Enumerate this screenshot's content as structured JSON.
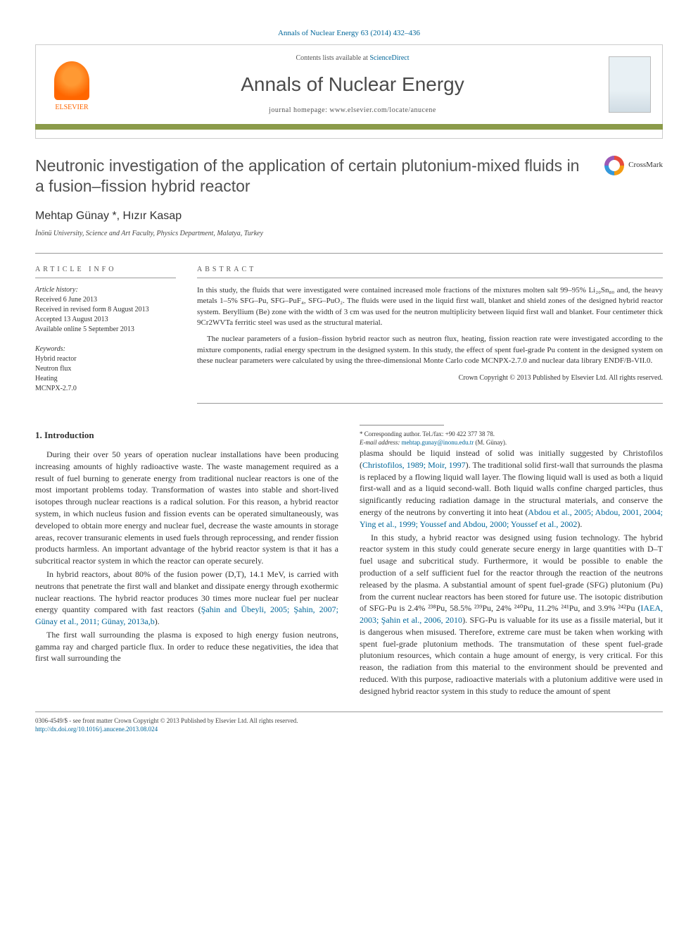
{
  "header": {
    "citation": "Annals of Nuclear Energy 63 (2014) 432–436",
    "contents_prefix": "Contents lists available at ",
    "contents_link": "ScienceDirect",
    "journal_name": "Annals of Nuclear Energy",
    "homepage_prefix": "journal homepage: ",
    "homepage_url": "www.elsevier.com/locate/anucene",
    "publisher_label": "ELSEVIER"
  },
  "colors": {
    "link": "#006699",
    "accent": "#8b9b4a",
    "elsevier_orange": "#ff6600",
    "text_gray": "#505050"
  },
  "crossmark_label": "CrossMark",
  "title": "Neutronic investigation of the application of certain plutonium-mixed fluids in a fusion–fission hybrid reactor",
  "authors": "Mehtap Günay *, Hızır Kasap",
  "affiliation": "İnönü University, Science and Art Faculty, Physics Department, Malatya, Turkey",
  "article_info": {
    "heading": "ARTICLE INFO",
    "history_label": "Article history:",
    "received": "Received 6 June 2013",
    "revised": "Received in revised form 8 August 2013",
    "accepted": "Accepted 13 August 2013",
    "online": "Available online 5 September 2013",
    "keywords_label": "Keywords:",
    "keywords": [
      "Hybrid reactor",
      "Neutron flux",
      "Heating",
      "MCNPX-2.7.0"
    ]
  },
  "abstract": {
    "heading": "ABSTRACT",
    "p1": "In this study, the fluids that were investigated were contained increased mole fractions of the mixtures molten salt 99–95% Li₂₀Sn₈₀ and, the heavy metals 1–5% SFG–Pu, SFG–PuF₄, SFG–PuO₂. The fluids were used in the liquid first wall, blanket and shield zones of the designed hybrid reactor system. Beryllium (Be) zone with the width of 3 cm was used for the neutron multiplicity between liquid first wall and blanket. Four centimeter thick 9Cr2WVTa ferritic steel was used as the structural material.",
    "p2": "The nuclear parameters of a fusion–fission hybrid reactor such as neutron flux, heating, fission reaction rate were investigated according to the mixture components, radial energy spectrum in the designed system. In this study, the effect of spent fuel-grade Pu content in the designed system on these nuclear parameters were calculated by using the three-dimensional Monte Carlo code MCNPX-2.7.0 and nuclear data library ENDF/B-VII.0.",
    "copyright": "Crown Copyright © 2013 Published by Elsevier Ltd. All rights reserved."
  },
  "body": {
    "section_heading": "1. Introduction",
    "p1": "During their over 50 years of operation nuclear installations have been producing increasing amounts of highly radioactive waste. The waste management required as a result of fuel burning to generate energy from traditional nuclear reactors is one of the most important problems today. Transformation of wastes into stable and short-lived isotopes through nuclear reactions is a radical solution. For this reason, a hybrid reactor system, in which nucleus fusion and fission events can be operated simultaneously, was developed to obtain more energy and nuclear fuel, decrease the waste amounts in storage areas, recover transuranic elements in used fuels through reprocessing, and render fission products harmless. An important advantage of the hybrid reactor system is that it has a subcritical reactor system in which the reactor can operate securely.",
    "p2_a": "In hybrid reactors, about 80% of the fusion power (D,T), 14.1 MeV, is carried with neutrons that penetrate the first wall and blanket and dissipate energy through exothermic nuclear reactions. The hybrid reactor produces 30 times more nuclear fuel per nuclear energy quantity compared with fast reactors (",
    "p2_link": "Şahin and Übeyli, 2005; Şahin, 2007; Günay et al., 2011; Günay, 2013a,b",
    "p2_b": ").",
    "p3": "The first wall surrounding the plasma is exposed to high energy fusion neutrons, gamma ray and charged particle flux. In order to reduce these negativities, the idea that first wall surrounding the",
    "p4_a": "plasma should be liquid instead of solid was initially suggested by Christofilos (",
    "p4_link1": "Christofilos, 1989; Moir, 1997",
    "p4_b": "). The traditional solid first-wall that surrounds the plasma is replaced by a flowing liquid wall layer. The flowing liquid wall is used as both a liquid first-wall and as a liquid second-wall. Both liquid walls confine charged particles, thus significantly reducing radiation damage in the structural materials, and conserve the energy of the neutrons by converting it into heat (",
    "p4_link2": "Abdou et al., 2005; Abdou, 2001, 2004; Ying et al., 1999; Youssef and Abdou, 2000; Youssef et al., 2002",
    "p4_c": ").",
    "p5_a": "In this study, a hybrid reactor was designed using fusion technology. The hybrid reactor system in this study could generate secure energy in large quantities with D–T fuel usage and subcritical study. Furthermore, it would be possible to enable the production of a self sufficient fuel for the reactor through the reaction of the neutrons released by the plasma. A substantial amount of spent fuel-grade (SFG) plutonium (Pu) from the current nuclear reactors has been stored for future use. The isotopic distribution of SFG-Pu is 2.4% ²³⁸Pu, 58.5% ²³⁹Pu, 24% ²⁴⁰Pu, 11.2% ²⁴¹Pu, and 3.9% ²⁴²Pu (",
    "p5_link": "IAEA, 2003; Şahin et al., 2006, 2010",
    "p5_b": "). SFG-Pu is valuable for its use as a fissile material, but it is dangerous when misused. Therefore, extreme care must be taken when working with spent fuel-grade plutonium methods. The transmutation of these spent fuel-grade plutonium resources, which contain a huge amount of energy, is very critical. For this reason, the radiation from this material to the environment should be prevented and reduced. With this purpose, radioactive materials with a plutonium additive were used in designed hybrid reactor system in this study to reduce the amount of spent"
  },
  "footnote": {
    "corresponding": "* Corresponding author. Tel./fax: +90 422 377 38 78.",
    "email_label": "E-mail address: ",
    "email": "mehtap.gunay@inonu.edu.tr",
    "email_suffix": " (M. Günay)."
  },
  "footer": {
    "issn_line": "0306-4549/$ - see front matter Crown Copyright © 2013 Published by Elsevier Ltd. All rights reserved.",
    "doi": "http://dx.doi.org/10.1016/j.anucene.2013.08.024"
  }
}
